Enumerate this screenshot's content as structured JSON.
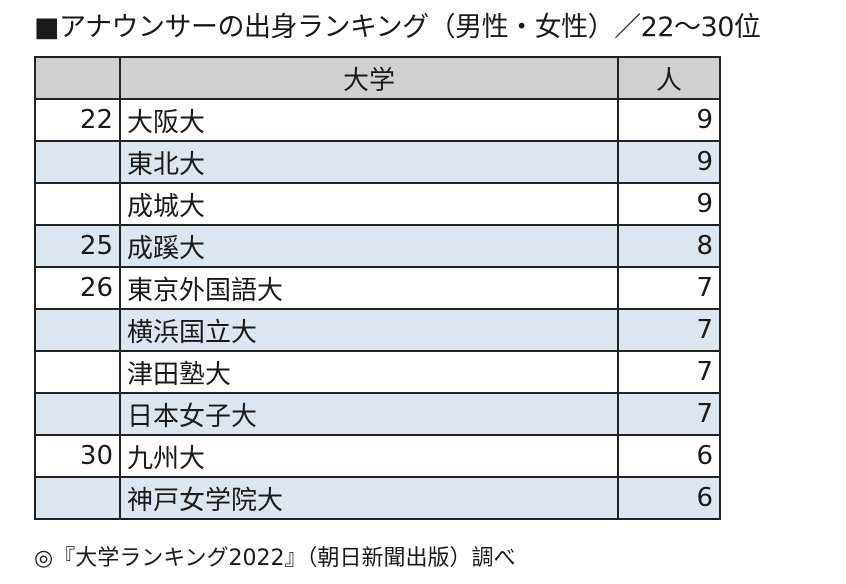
{
  "title": "■アナウンサーの出身ランキング（男性・女性）／22〜30位",
  "table": {
    "headers": {
      "rank": "",
      "university": "大学",
      "count": "人"
    },
    "rows": [
      {
        "rank": "22",
        "university": "大阪大",
        "count": "9"
      },
      {
        "rank": "",
        "university": "東北大",
        "count": "9"
      },
      {
        "rank": "",
        "university": "成城大",
        "count": "9"
      },
      {
        "rank": "25",
        "university": "成蹊大",
        "count": "8"
      },
      {
        "rank": "26",
        "university": "東京外国語大",
        "count": "7"
      },
      {
        "rank": "",
        "university": "横浜国立大",
        "count": "7"
      },
      {
        "rank": "",
        "university": "津田塾大",
        "count": "7"
      },
      {
        "rank": "",
        "university": "日本女子大",
        "count": "7"
      },
      {
        "rank": "30",
        "university": "九州大",
        "count": "6"
      },
      {
        "rank": "",
        "university": "神戸女学院大",
        "count": "6"
      }
    ]
  },
  "colors": {
    "header_bg": "#d0d0d0",
    "stripe_bg": "#dce6f1",
    "border": "#222222"
  },
  "footnote": "◎『大学ランキング2022』（朝日新聞出版）調べ"
}
